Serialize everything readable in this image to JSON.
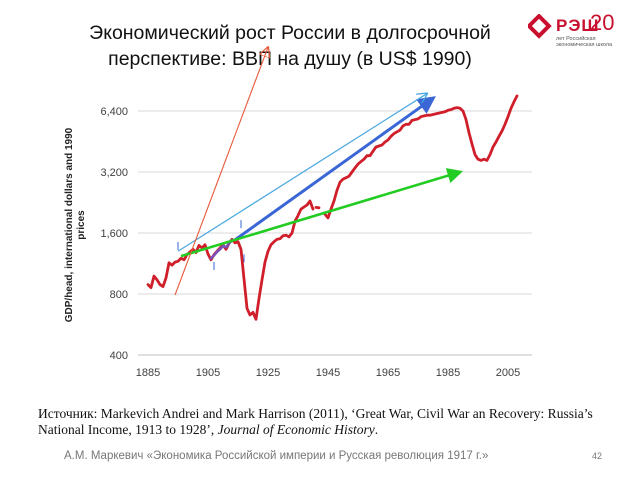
{
  "slide": {
    "title_line1": "Экономический рост России в долгосрочной",
    "title_line2": "перспективе: ВВП на душу (в US$ 1990)",
    "logo_text": "РЭШ",
    "logo_number": "20",
    "logo_subtitle": "лет Российская экономическая школа",
    "source_prefix": "Источник: Markevich Andrei and Mark Harrison (2011), ‘Great  War, Civil War an Recovery: Russia’s National Income, 1913 to 1928’, ",
    "source_journal": "Journal of Economic History",
    "source_suffix": ".",
    "footer": "А.М. Маркевич «Экономика Российской империи и Русская революция 1917 г.»",
    "page_number": "42"
  },
  "colors": {
    "gdp_line": "#d01f2a",
    "blue_arrow": "#3a66d6",
    "light_blue_arrow": "#4aa8e0",
    "green_arrow": "#22cc22",
    "orange_arrow": "#e8593a",
    "grid": "#d9d9d9",
    "axis_text": "#404040"
  },
  "chart_data": {
    "type": "line",
    "title": "",
    "xlabel": "",
    "ylabel": "GDP/head, international dollars and 1990 prices",
    "y_scale": "log",
    "xlim": [
      1885,
      2010
    ],
    "ylim": [
      400,
      8500
    ],
    "x_ticks": [
      1885,
      1905,
      1925,
      1945,
      1965,
      1985,
      2005
    ],
    "x_tick_labels": [
      "1885",
      "1905",
      "1925",
      "1945",
      "1965",
      "1985",
      "2005"
    ],
    "y_ticks": [
      400,
      800,
      1600,
      3200,
      6400
    ],
    "y_tick_labels": [
      "400",
      "800",
      "1,600",
      "3,200",
      "6,400"
    ],
    "grid": "horizontal",
    "series": [
      {
        "role": "gdp_main",
        "x": [
          1885,
          1886,
          1887,
          1888,
          1889,
          1890,
          1891,
          1892,
          1893,
          1894,
          1895,
          1896,
          1897,
          1898,
          1899,
          1900,
          1901,
          1902,
          1903,
          1904,
          1905,
          1906,
          1907,
          1908,
          1909,
          1910,
          1911,
          1912,
          1913,
          1914,
          1915,
          1916,
          1917,
          1918,
          1919,
          1920,
          1921,
          1922,
          1923,
          1924,
          1925,
          1926,
          1927,
          1928,
          1929,
          1930,
          1931,
          1932,
          1933,
          1934,
          1935,
          1936,
          1937,
          1938,
          1939,
          1940
        ],
        "values": [
          890,
          860,
          980,
          940,
          890,
          870,
          960,
          1140,
          1110,
          1150,
          1160,
          1200,
          1180,
          1250,
          1290,
          1330,
          1280,
          1390,
          1350,
          1400,
          1260,
          1180,
          1250,
          1300,
          1350,
          1400,
          1330,
          1420,
          1490,
          1430,
          1450,
          1330,
          950,
          680,
          630,
          650,
          600,
          760,
          940,
          1150,
          1300,
          1400,
          1450,
          1490,
          1500,
          1550,
          1560,
          1530,
          1600,
          1830,
          1950,
          2100,
          2150,
          2200,
          2300,
          2100
        ]
      },
      {
        "role": "gdp_main",
        "x": [
          1941,
          1942
        ],
        "values": [
          2140,
          2130
        ]
      },
      {
        "role": "gdp_main",
        "x": [
          1944,
          1945,
          1946,
          1947,
          1948,
          1949,
          1950,
          1951,
          1952,
          1953,
          1954,
          1955,
          1956,
          1957,
          1958,
          1959,
          1960,
          1961,
          1962,
          1963,
          1964,
          1965,
          1966,
          1967,
          1968,
          1969,
          1970,
          1971,
          1972,
          1973,
          1974,
          1975,
          1976,
          1977,
          1978,
          1979,
          1980,
          1981,
          1982,
          1983,
          1984,
          1985,
          1986,
          1987,
          1988,
          1989,
          1990,
          1991,
          1992,
          1993,
          1994,
          1995,
          1996,
          1997,
          1998,
          1999,
          2000,
          2001,
          2002,
          2003,
          2004,
          2005,
          2006,
          2007,
          2008
        ],
        "values": [
          1980,
          1900,
          2100,
          2300,
          2600,
          2850,
          2950,
          3000,
          3050,
          3200,
          3350,
          3500,
          3600,
          3700,
          3850,
          3850,
          4050,
          4250,
          4300,
          4350,
          4500,
          4600,
          4800,
          4950,
          5050,
          5150,
          5400,
          5500,
          5500,
          5750,
          5800,
          5850,
          6000,
          6050,
          6100,
          6100,
          6150,
          6200,
          6250,
          6300,
          6350,
          6450,
          6500,
          6600,
          6650,
          6600,
          6400,
          5800,
          5000,
          4400,
          3900,
          3700,
          3650,
          3700,
          3650,
          3900,
          4250,
          4500,
          4800,
          5100,
          5500,
          6000,
          6600,
          7100,
          7600
        ]
      },
      {
        "role": "highlight_purple",
        "x": [
          1906,
          1907,
          1908,
          1909,
          1910,
          1911,
          1912,
          1913
        ],
        "values": [
          1200,
          1240,
          1290,
          1330,
          1380,
          1360,
          1420,
          1470
        ]
      }
    ],
    "annotations": {
      "trend_arrows": [
        {
          "role": "blue_arrow",
          "from": {
            "x": 1914,
            "y": 1480
          },
          "to": {
            "x": 1980,
            "y": 7400
          }
        },
        {
          "role": "light_blue_arrow",
          "from": {
            "x": 1895,
            "y": 1300
          },
          "to": {
            "x": 1978,
            "y": 7800
          }
        },
        {
          "role": "green_arrow",
          "from": {
            "x": 1896,
            "y": 1230
          },
          "to": {
            "x": 1989,
            "y": 3200
          }
        },
        {
          "role": "orange_arrow",
          "from": {
            "x": 1894,
            "y": 790
          },
          "to": {
            "x": 1925,
            "y": 13200
          }
        }
      ],
      "tick_marks": [
        {
          "x": 1895,
          "y": 1380
        },
        {
          "x": 1907,
          "y": 1100
        },
        {
          "x": 1916,
          "y": 1770
        },
        {
          "x": 1917,
          "y": 1200
        }
      ]
    }
  }
}
